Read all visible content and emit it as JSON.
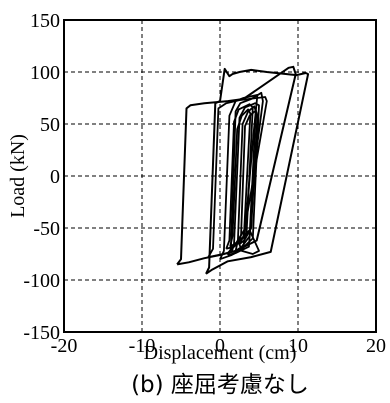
{
  "chart_data": {
    "type": "line",
    "title": "",
    "caption": "(b) 座屈考慮なし",
    "xlabel": "Displacement (cm)",
    "ylabel": "Load (kN)",
    "xlim": [
      -20,
      20
    ],
    "ylim": [
      -150,
      150
    ],
    "xticks": [
      "-20",
      "-10",
      "0",
      "10",
      "20"
    ],
    "yticks": [
      "150",
      "100",
      "50",
      "0",
      "-50",
      "-100",
      "-150"
    ],
    "grid": true,
    "grid_style": "dashed",
    "series": [
      {
        "values": [
          [
            -5.5,
            -85
          ],
          [
            -5.0,
            -80
          ],
          [
            -4.3,
            65
          ],
          [
            -3.8,
            68
          ],
          [
            -2.0,
            70
          ],
          [
            1.0,
            72
          ],
          [
            3.0,
            74
          ],
          [
            8.8,
            104
          ],
          [
            9.4,
            105
          ],
          [
            9.7,
            98
          ],
          [
            4.7,
            -62
          ],
          [
            2.0,
            -72
          ],
          [
            0.0,
            -76
          ],
          [
            -2.0,
            -79
          ],
          [
            -4.0,
            -83
          ],
          [
            -5.5,
            -85
          ]
        ]
      },
      {
        "values": [
          [
            -1.8,
            -94
          ],
          [
            -1.4,
            -88
          ],
          [
            -0.6,
            70
          ],
          [
            0.0,
            72
          ],
          [
            0.6,
            103
          ],
          [
            1.2,
            96
          ],
          [
            1.6,
            98
          ],
          [
            2.5,
            100
          ],
          [
            4.0,
            102
          ],
          [
            6.0,
            100
          ],
          [
            9.8,
            97
          ],
          [
            11.0,
            99
          ],
          [
            11.3,
            98
          ],
          [
            6.5,
            -73
          ],
          [
            4.0,
            -78
          ],
          [
            1.0,
            -82
          ],
          [
            -1.0,
            -90
          ],
          [
            -1.8,
            -94
          ]
        ]
      },
      {
        "values": [
          [
            -1.5,
            -78
          ],
          [
            -0.9,
            -70
          ],
          [
            -0.2,
            65
          ],
          [
            0.8,
            70
          ],
          [
            2.5,
            73
          ],
          [
            5.8,
            76
          ],
          [
            6.0,
            72
          ],
          [
            3.0,
            -58
          ],
          [
            2.5,
            -66
          ],
          [
            2.8,
            -72
          ],
          [
            4.2,
            -75
          ],
          [
            5.0,
            -72
          ],
          [
            3.8,
            -52
          ],
          [
            1.0,
            -74
          ],
          [
            -1.5,
            -78
          ]
        ]
      },
      {
        "values": [
          [
            0.0,
            -80
          ],
          [
            0.5,
            -72
          ],
          [
            1.2,
            58
          ],
          [
            2.0,
            72
          ],
          [
            3.0,
            75
          ],
          [
            4.8,
            78
          ],
          [
            4.3,
            40
          ],
          [
            3.0,
            -70
          ],
          [
            1.5,
            -76
          ],
          [
            0.0,
            -80
          ]
        ]
      },
      {
        "values": [
          [
            1.0,
            -76
          ],
          [
            1.4,
            -70
          ],
          [
            2.0,
            62
          ],
          [
            2.6,
            70
          ],
          [
            4.0,
            74
          ],
          [
            5.3,
            80
          ],
          [
            5.5,
            72
          ],
          [
            4.6,
            20
          ],
          [
            3.7,
            -68
          ],
          [
            2.0,
            -74
          ],
          [
            1.0,
            -76
          ]
        ]
      },
      {
        "values": [
          [
            1.5,
            -73
          ],
          [
            1.8,
            -66
          ],
          [
            2.5,
            56
          ],
          [
            3.2,
            66
          ],
          [
            4.5,
            70
          ],
          [
            5.0,
            68
          ],
          [
            4.2,
            -60
          ],
          [
            2.5,
            -72
          ],
          [
            1.5,
            -73
          ]
        ]
      },
      {
        "values": [
          [
            0.8,
            -70
          ],
          [
            1.2,
            -62
          ],
          [
            1.8,
            52
          ],
          [
            2.4,
            64
          ],
          [
            3.8,
            69
          ],
          [
            4.2,
            66
          ],
          [
            3.4,
            -56
          ],
          [
            1.8,
            -68
          ],
          [
            0.8,
            -70
          ]
        ]
      },
      {
        "values": [
          [
            2.0,
            -72
          ],
          [
            2.3,
            -62
          ],
          [
            2.9,
            50
          ],
          [
            3.6,
            62
          ],
          [
            4.4,
            67
          ],
          [
            4.6,
            62
          ],
          [
            3.8,
            -58
          ],
          [
            2.8,
            -68
          ],
          [
            2.0,
            -72
          ]
        ]
      },
      {
        "values": [
          [
            1.3,
            -68
          ],
          [
            1.6,
            -58
          ],
          [
            2.2,
            45
          ],
          [
            2.8,
            58
          ],
          [
            3.6,
            64
          ],
          [
            3.9,
            60
          ],
          [
            3.1,
            -52
          ],
          [
            2.1,
            -64
          ],
          [
            1.3,
            -68
          ]
        ]
      },
      {
        "values": [
          [
            2.4,
            -66
          ],
          [
            2.7,
            -56
          ],
          [
            3.2,
            48
          ],
          [
            3.8,
            58
          ],
          [
            4.6,
            63
          ],
          [
            4.8,
            58
          ],
          [
            4.0,
            -50
          ],
          [
            3.1,
            -62
          ],
          [
            2.4,
            -66
          ]
        ]
      }
    ]
  }
}
